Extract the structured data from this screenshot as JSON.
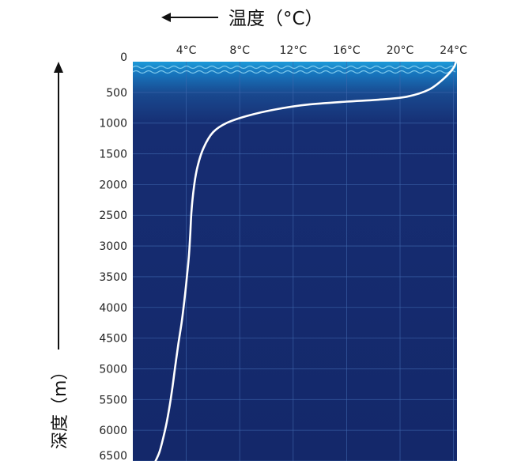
{
  "chart_data": {
    "type": "line",
    "title": "",
    "xlabel": "温度（°C）",
    "ylabel": "深度（m）",
    "x_axis_position": "top",
    "x_ticks": [
      4,
      8,
      12,
      16,
      20,
      24
    ],
    "x_tick_labels": [
      "4°C",
      "8°C",
      "12°C",
      "16°C",
      "20°C",
      "24°C"
    ],
    "y_ticks": [
      0,
      500,
      1000,
      1500,
      2000,
      2500,
      3000,
      3500,
      4000,
      4500,
      5000,
      5500,
      6000,
      6500
    ],
    "y_tick_labels": [
      "0",
      "500",
      "1000",
      "1500",
      "2000",
      "2500",
      "3000",
      "3500",
      "4000",
      "4500",
      "5000",
      "5500",
      "6000",
      "6500"
    ],
    "xlim": [
      0,
      24.2
    ],
    "ylim": [
      0,
      6500
    ],
    "grid": true,
    "series": [
      {
        "name": "",
        "x": [
          24.2,
          24.0,
          23.4,
          22.2,
          20.5,
          18.3,
          16.0,
          13.0,
          10.6,
          8.6,
          7.0,
          6.0,
          5.3,
          4.85,
          4.6,
          4.4,
          4.3,
          4.2,
          4.05,
          3.85,
          3.65,
          3.4,
          3.15,
          2.9,
          2.6,
          2.3,
          2.0,
          1.7
        ],
        "y": [
          0,
          100,
          250,
          450,
          570,
          620,
          650,
          700,
          780,
          880,
          1000,
          1150,
          1400,
          1700,
          2000,
          2400,
          2800,
          3150,
          3500,
          3900,
          4250,
          4600,
          5000,
          5400,
          5800,
          6100,
          6350,
          6500
        ]
      }
    ],
    "colors": {
      "background": "#15296b",
      "surface_layer": "#1a8fd0",
      "grid": "#3f67ad",
      "curve": "#ffffff"
    }
  }
}
